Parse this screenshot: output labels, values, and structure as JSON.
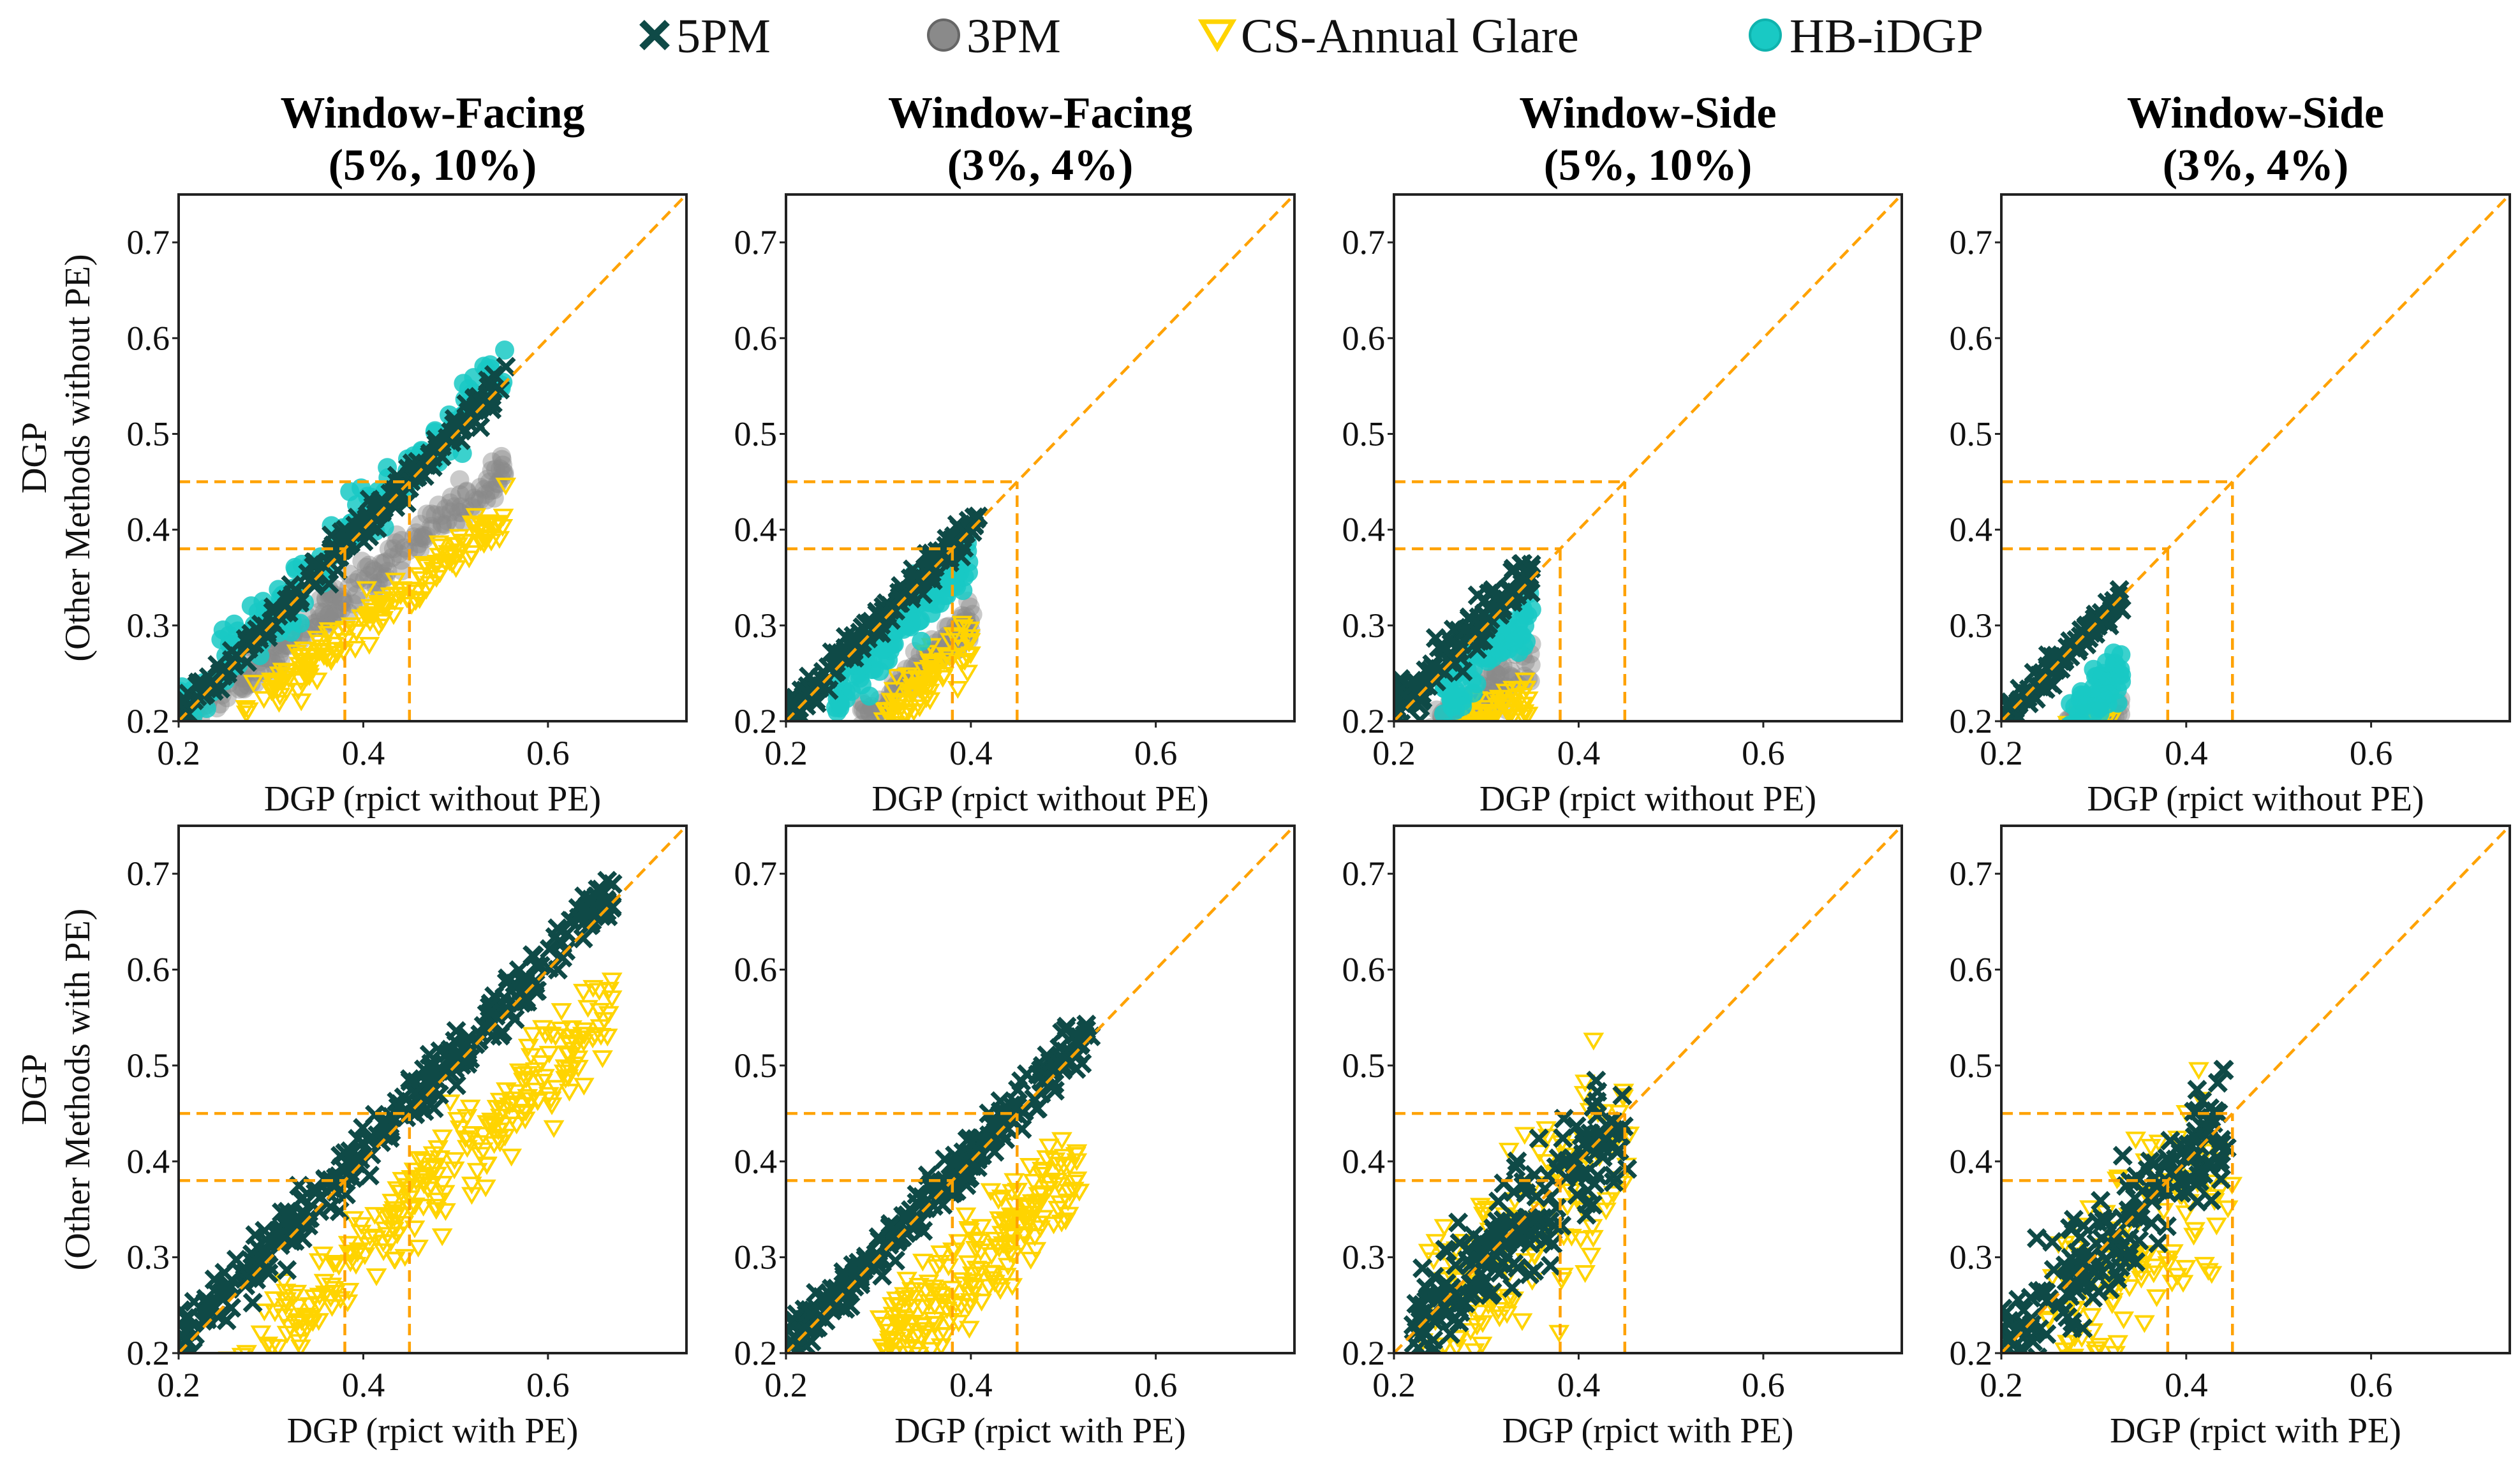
{
  "legend": [
    {
      "label": "5PM",
      "marker": "x",
      "color": "#0f4a47"
    },
    {
      "label": "3PM",
      "marker": "circle",
      "color": "#8a8a8a"
    },
    {
      "label": "CS-Annual Glare",
      "marker": "triangle-down-open",
      "color": "#ffd400"
    },
    {
      "label": "HB-iDGP",
      "marker": "circle",
      "color": "#19c9c4"
    }
  ],
  "colors": {
    "reference": "#ffa200",
    "axis": "#222222"
  },
  "chart_data": [
    {
      "type": "scatter",
      "title": [
        "Window-Facing",
        "(5%, 10%)"
      ],
      "xlabel": "DGP (rpict without PE)",
      "ylabel": [
        "DGP",
        "(Other Methods without PE)"
      ],
      "xlim": [
        0.2,
        0.75
      ],
      "ylim": [
        0.2,
        0.75
      ],
      "xticks": [
        "0.2",
        "0.4",
        "0.6"
      ],
      "yticks": [
        "0.2",
        "0.3",
        "0.4",
        "0.5",
        "0.6",
        "0.7"
      ],
      "thresholds": [
        0.38,
        0.45
      ],
      "series": [
        {
          "name": "3PM",
          "x_range": [
            0.2,
            0.555
          ],
          "fit": [
            0.042,
            0.76
          ],
          "spread": 0.012,
          "n": 220
        },
        {
          "name": "CS-Annual Glare",
          "x_range": [
            0.27,
            0.555
          ],
          "fit": [
            0.0,
            0.76
          ],
          "spread": 0.012,
          "n": 160
        },
        {
          "name": "HB-iDGP",
          "x_range": [
            0.2,
            0.555
          ],
          "fit": [
            0.012,
            1.0
          ],
          "spread": 0.018,
          "n": 160
        },
        {
          "name": "5PM",
          "x_range": [
            0.2,
            0.555
          ],
          "fit": [
            0.004,
            1.0
          ],
          "spread": 0.009,
          "n": 220
        }
      ]
    },
    {
      "type": "scatter",
      "title": [
        "Window-Facing",
        "(3%, 4%)"
      ],
      "xlabel": "DGP (rpict without PE)",
      "ylabel": null,
      "xlim": [
        0.2,
        0.75
      ],
      "ylim": [
        0.2,
        0.75
      ],
      "xticks": [
        "0.2",
        "0.4",
        "0.6"
      ],
      "yticks": [
        "0.2",
        "0.3",
        "0.4",
        "0.5",
        "0.6",
        "0.7"
      ],
      "thresholds": [
        0.38,
        0.45
      ],
      "series": [
        {
          "name": "3PM",
          "x_range": [
            0.28,
            0.405
          ],
          "fit": [
            -0.035,
            0.85
          ],
          "spread": 0.01,
          "n": 90
        },
        {
          "name": "CS-Annual Glare",
          "x_range": [
            0.29,
            0.4
          ],
          "fit": [
            -0.06,
            0.85
          ],
          "spread": 0.015,
          "n": 90
        },
        {
          "name": "HB-iDGP",
          "x_range": [
            0.25,
            0.4
          ],
          "fit": [
            -0.01,
            0.95
          ],
          "spread": 0.015,
          "n": 110
        },
        {
          "name": "5PM",
          "x_range": [
            0.2,
            0.41
          ],
          "fit": [
            0.005,
            1.0
          ],
          "spread": 0.008,
          "n": 170
        }
      ]
    },
    {
      "type": "scatter",
      "title": [
        "Window-Side",
        "(5%, 10%)"
      ],
      "xlabel": "DGP (rpict without PE)",
      "ylabel": null,
      "xlim": [
        0.2,
        0.75
      ],
      "ylim": [
        0.2,
        0.75
      ],
      "xticks": [
        "0.2",
        "0.4",
        "0.6"
      ],
      "yticks": [
        "0.2",
        "0.3",
        "0.4",
        "0.5",
        "0.6",
        "0.7"
      ],
      "thresholds": [
        0.38,
        0.45
      ],
      "series": [
        {
          "name": "3PM",
          "x_range": [
            0.24,
            0.35
          ],
          "fit": [
            0.05,
            0.6
          ],
          "spread": 0.012,
          "n": 80
        },
        {
          "name": "CS-Annual Glare",
          "x_range": [
            0.27,
            0.35
          ],
          "fit": [
            0.04,
            0.55
          ],
          "spread": 0.012,
          "n": 60
        },
        {
          "name": "HB-iDGP",
          "x_range": [
            0.25,
            0.35
          ],
          "fit": [
            -0.03,
            1.0
          ],
          "spread": 0.015,
          "n": 80
        },
        {
          "name": "5PM",
          "x_range": [
            0.2,
            0.35
          ],
          "fit": [
            0.008,
            1.0
          ],
          "spread": 0.012,
          "n": 120
        }
      ]
    },
    {
      "type": "scatter",
      "title": [
        "Window-Side",
        "(3%, 4%)"
      ],
      "xlabel": "DGP (rpict without PE)",
      "ylabel": null,
      "xlim": [
        0.2,
        0.75
      ],
      "ylim": [
        0.2,
        0.75
      ],
      "xticks": [
        "0.2",
        "0.4",
        "0.6"
      ],
      "yticks": [
        "0.2",
        "0.3",
        "0.4",
        "0.5",
        "0.6",
        "0.7"
      ],
      "thresholds": [
        0.38,
        0.45
      ],
      "series": [
        {
          "name": "3PM",
          "x_range": [
            0.27,
            0.33
          ],
          "fit": [
            0.12,
            0.28
          ],
          "spread": 0.006,
          "n": 40
        },
        {
          "name": "CS-Annual Glare",
          "x_range": [
            0.27,
            0.32
          ],
          "fit": [
            0.15,
            0.18
          ],
          "spread": 0.005,
          "n": 20
        },
        {
          "name": "HB-iDGP",
          "x_range": [
            0.27,
            0.33
          ],
          "fit": [
            -0.05,
            0.9
          ],
          "spread": 0.015,
          "n": 60
        },
        {
          "name": "5PM",
          "x_range": [
            0.2,
            0.33
          ],
          "fit": [
            0.0,
            1.0
          ],
          "spread": 0.008,
          "n": 100
        }
      ]
    },
    {
      "type": "scatter",
      "title": null,
      "xlabel": "DGP (rpict with PE)",
      "ylabel": [
        "DGP",
        "(Other Methods with PE)"
      ],
      "xlim": [
        0.2,
        0.75
      ],
      "ylim": [
        0.2,
        0.75
      ],
      "xticks": [
        "0.2",
        "0.4",
        "0.6"
      ],
      "yticks": [
        "0.2",
        "0.3",
        "0.4",
        "0.5",
        "0.6",
        "0.7"
      ],
      "thresholds": [
        0.38,
        0.45
      ],
      "series": [
        {
          "name": "CS-Annual Glare",
          "x_range": [
            0.25,
            0.67
          ],
          "fit": [
            -0.065,
            0.93
          ],
          "spread": 0.025,
          "n": 260
        },
        {
          "name": "5PM",
          "x_range": [
            0.2,
            0.67
          ],
          "fit": [
            0.01,
            1.0
          ],
          "spread": 0.014,
          "n": 300
        }
      ]
    },
    {
      "type": "scatter",
      "title": null,
      "xlabel": "DGP (rpict with PE)",
      "ylabel": null,
      "xlim": [
        0.2,
        0.75
      ],
      "ylim": [
        0.2,
        0.75
      ],
      "xticks": [
        "0.2",
        "0.4",
        "0.6"
      ],
      "yticks": [
        "0.2",
        "0.3",
        "0.4",
        "0.5",
        "0.6",
        "0.7"
      ],
      "thresholds": [
        0.38,
        0.45
      ],
      "series": [
        {
          "name": "CS-Annual Glare",
          "x_range": [
            0.3,
            0.52
          ],
          "fit": [
            -0.07,
            0.9
          ],
          "spread": 0.025,
          "n": 200
        },
        {
          "name": "5PM",
          "x_range": [
            0.2,
            0.53
          ],
          "fit": [
            0.005,
            1.0
          ],
          "spread": 0.012,
          "n": 260
        }
      ]
    },
    {
      "type": "scatter",
      "title": null,
      "xlabel": "DGP (rpict with PE)",
      "ylabel": null,
      "xlim": [
        0.2,
        0.75
      ],
      "ylim": [
        0.2,
        0.75
      ],
      "xticks": [
        "0.2",
        "0.4",
        "0.6"
      ],
      "yticks": [
        "0.2",
        "0.3",
        "0.4",
        "0.5",
        "0.6",
        "0.7"
      ],
      "thresholds": [
        0.38,
        0.45
      ],
      "series": [
        {
          "name": "CS-Annual Glare",
          "x_range": [
            0.22,
            0.455
          ],
          "fit": [
            -0.02,
            1.0
          ],
          "spread": 0.06,
          "n": 150
        },
        {
          "name": "5PM",
          "x_range": [
            0.22,
            0.455
          ],
          "fit": [
            0.0,
            1.0
          ],
          "spread": 0.03,
          "n": 200
        }
      ]
    },
    {
      "type": "scatter",
      "title": null,
      "xlabel": "DGP (rpict with PE)",
      "ylabel": null,
      "xlim": [
        0.2,
        0.75
      ],
      "ylim": [
        0.2,
        0.75
      ],
      "xticks": [
        "0.2",
        "0.4",
        "0.6"
      ],
      "yticks": [
        "0.2",
        "0.3",
        "0.4",
        "0.5",
        "0.6",
        "0.7"
      ],
      "thresholds": [
        0.38,
        0.45
      ],
      "series": [
        {
          "name": "CS-Annual Glare",
          "x_range": [
            0.25,
            0.45
          ],
          "fit": [
            -0.04,
            1.0
          ],
          "spread": 0.05,
          "n": 120
        },
        {
          "name": "5PM",
          "x_range": [
            0.2,
            0.445
          ],
          "fit": [
            0.0,
            1.0
          ],
          "spread": 0.03,
          "n": 200
        }
      ]
    }
  ]
}
